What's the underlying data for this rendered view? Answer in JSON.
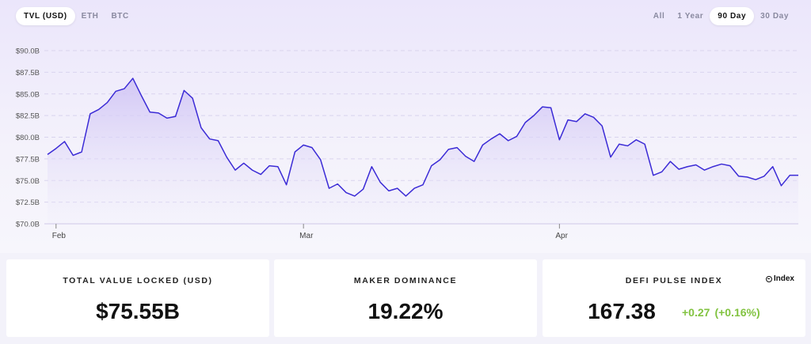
{
  "tabs_left": [
    {
      "label": "TVL (USD)",
      "active": true
    },
    {
      "label": "ETH",
      "active": false
    },
    {
      "label": "BTC",
      "active": false
    }
  ],
  "tabs_right": [
    {
      "label": "All",
      "active": false
    },
    {
      "label": "1 Year",
      "active": false
    },
    {
      "label": "90 Day",
      "active": true
    },
    {
      "label": "30 Day",
      "active": false
    }
  ],
  "colors": {
    "line": "#3b2bd6",
    "fill_top": "#d9d0f7",
    "positive": "#82c341"
  },
  "chart_data": {
    "type": "area",
    "title": "",
    "xlabel": "",
    "ylabel": "",
    "ylim": [
      70.0,
      90.0
    ],
    "y_ticks": [
      70.0,
      72.5,
      75.0,
      77.5,
      80.0,
      82.5,
      85.0,
      87.5,
      90.0
    ],
    "y_tick_labels": [
      "$70.0B",
      "$72.5B",
      "$75.0B",
      "$77.5B",
      "$80.0B",
      "$82.5B",
      "$85.0B",
      "$87.5B",
      "$90.0B"
    ],
    "x_ticks": [
      {
        "label": "Feb",
        "index": 1
      },
      {
        "label": "Mar",
        "index": 30
      },
      {
        "label": "Apr",
        "index": 60
      }
    ],
    "grid": true,
    "series": [
      {
        "values": [
          78.0,
          78.7,
          79.5,
          77.9,
          78.3,
          82.7,
          83.2,
          84.0,
          85.3,
          85.6,
          86.8,
          84.8,
          82.9,
          82.8,
          82.2,
          82.4,
          85.4,
          84.5,
          81.1,
          79.8,
          79.6,
          77.7,
          76.2,
          77.0,
          76.2,
          75.7,
          76.7,
          76.6,
          74.5,
          78.3,
          79.1,
          78.8,
          77.4,
          74.1,
          74.6,
          73.6,
          73.2,
          74.0,
          76.6,
          74.8,
          73.8,
          74.1,
          73.2,
          74.1,
          74.5,
          76.7,
          77.4,
          78.6,
          78.8,
          77.8,
          77.2,
          79.1,
          79.8,
          80.4,
          79.6,
          80.1,
          81.7,
          82.5,
          83.5,
          83.4,
          79.7,
          82.0,
          81.8,
          82.7,
          82.3,
          81.3,
          77.7,
          79.2,
          79.0,
          79.7,
          79.2,
          75.6,
          76.0,
          77.2,
          76.3,
          76.6,
          76.8,
          76.2,
          76.6,
          76.9,
          76.7,
          75.5,
          75.4,
          75.1,
          75.5,
          76.6,
          74.4,
          75.6,
          75.6
        ]
      }
    ]
  },
  "cards": {
    "tvl": {
      "title": "TOTAL VALUE LOCKED (USD)",
      "value": "$75.55B"
    },
    "dominance": {
      "title": "MAKER DOMINANCE",
      "value": "19.22%"
    },
    "dpi": {
      "title": "DEFI PULSE INDEX",
      "value": "167.38",
      "change_abs": "+0.27",
      "change_pct": "(+0.16%)",
      "logo_text": "Index"
    }
  }
}
